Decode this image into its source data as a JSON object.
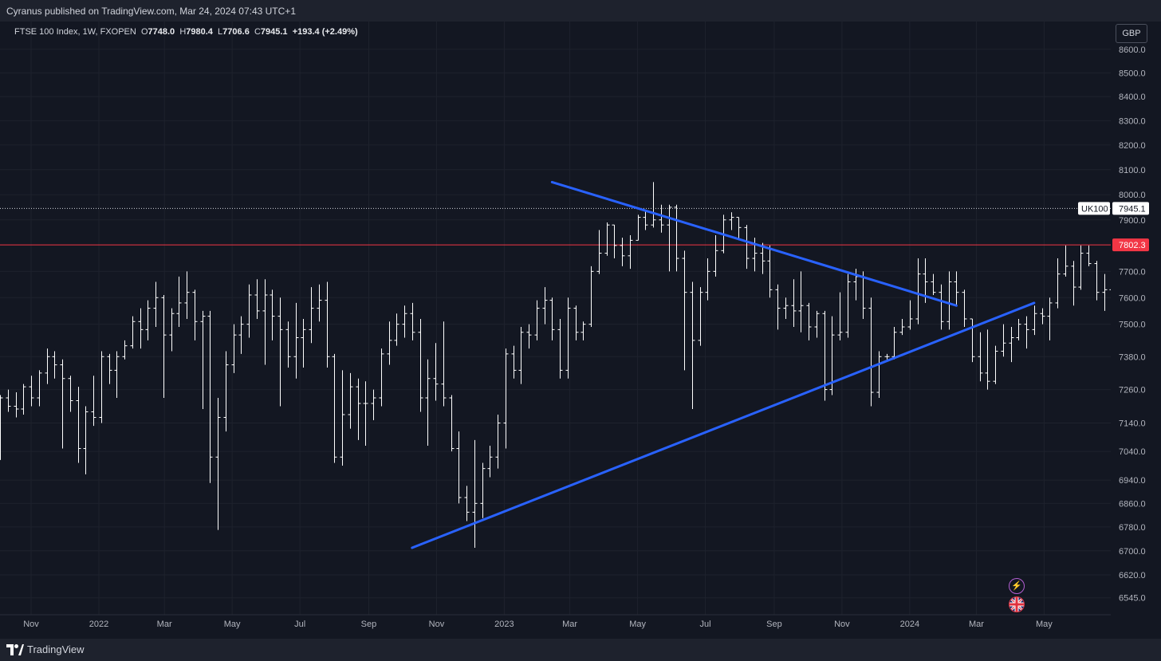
{
  "header": {
    "publisher": "Cyranus published on TradingView.com, Mar 24, 2024 07:43 UTC+1"
  },
  "legend": {
    "symbol": "FTSE 100 Index, 1W, FXOPEN",
    "o_label": "O",
    "o_value": "7748.0",
    "h_label": "H",
    "h_value": "7980.4",
    "l_label": "L",
    "l_value": "7706.6",
    "c_label": "C",
    "c_value": "7945.1",
    "change": "+193.4 (+2.49%)"
  },
  "currency_button": "GBP",
  "footer": {
    "brand": "TradingView"
  },
  "chart_data": {
    "type": "ohlc",
    "scale": "log",
    "ylim": [
      6490,
      8720
    ],
    "y_ticks": [
      "8600.0",
      "8500.0",
      "8400.0",
      "8300.0",
      "8200.0",
      "8100.0",
      "8000.0",
      "7900.0",
      "7802.3",
      "7700.0",
      "7600.0",
      "7500.0",
      "7380.0",
      "7260.0",
      "7140.0",
      "7040.0",
      "6940.0",
      "6860.0",
      "6780.0",
      "6700.0",
      "6620.0",
      "6545.0"
    ],
    "x_ticks": [
      "Nov",
      "2022",
      "Mar",
      "May",
      "Jul",
      "Sep",
      "Nov",
      "2023",
      "Mar",
      "May",
      "Jul",
      "Sep",
      "Nov",
      "2024",
      "Mar",
      "May"
    ],
    "x_tick_dates": [
      "2021-11-01",
      "2022-01-01",
      "2022-03-01",
      "2022-05-01",
      "2022-07-01",
      "2022-09-01",
      "2022-11-01",
      "2023-01-01",
      "2023-03-01",
      "2023-05-01",
      "2023-07-01",
      "2023-09-01",
      "2023-11-01",
      "2024-01-01",
      "2024-03-01",
      "2024-05-01"
    ],
    "xlim": [
      "2021-10-04",
      "2024-06-30"
    ],
    "first_bar_date": "2021-10-04",
    "bar_interval": "1W",
    "series": [
      {
        "name": "UK100",
        "bars": [
          [
            7140,
            7240,
            7010,
            7230
          ],
          [
            7230,
            7260,
            7180,
            7200
          ],
          [
            7200,
            7250,
            7160,
            7190
          ],
          [
            7190,
            7280,
            7170,
            7270
          ],
          [
            7270,
            7310,
            7200,
            7230
          ],
          [
            7230,
            7330,
            7200,
            7320
          ],
          [
            7320,
            7410,
            7280,
            7380
          ],
          [
            7380,
            7400,
            7300,
            7350
          ],
          [
            7350,
            7370,
            7050,
            7300
          ],
          [
            7300,
            7310,
            7180,
            7220
          ],
          [
            7220,
            7270,
            7000,
            7050
          ],
          [
            7050,
            7200,
            6960,
            7180
          ],
          [
            7180,
            7310,
            7130,
            7160
          ],
          [
            7160,
            7400,
            7140,
            7380
          ],
          [
            7380,
            7390,
            7280,
            7330
          ],
          [
            7330,
            7400,
            7230,
            7380
          ],
          [
            7380,
            7440,
            7370,
            7420
          ],
          [
            7420,
            7530,
            7410,
            7510
          ],
          [
            7510,
            7560,
            7410,
            7480
          ],
          [
            7480,
            7590,
            7440,
            7560
          ],
          [
            7560,
            7660,
            7490,
            7600
          ],
          [
            7600,
            7610,
            7230,
            7460
          ],
          [
            7460,
            7560,
            7400,
            7540
          ],
          [
            7540,
            7680,
            7490,
            7580
          ],
          [
            7580,
            7700,
            7520,
            7620
          ],
          [
            7620,
            7630,
            7440,
            7510
          ],
          [
            7510,
            7550,
            7190,
            7530
          ],
          [
            7530,
            7550,
            6930,
            7020
          ],
          [
            7020,
            7230,
            6770,
            7160
          ],
          [
            7160,
            7400,
            7110,
            7350
          ],
          [
            7350,
            7500,
            7320,
            7460
          ],
          [
            7460,
            7530,
            7390,
            7500
          ],
          [
            7500,
            7650,
            7450,
            7610
          ],
          [
            7610,
            7670,
            7520,
            7550
          ],
          [
            7550,
            7670,
            7350,
            7610
          ],
          [
            7610,
            7630,
            7440,
            7530
          ],
          [
            7530,
            7600,
            7200,
            7480
          ],
          [
            7480,
            7510,
            7340,
            7380
          ],
          [
            7380,
            7580,
            7300,
            7450
          ],
          [
            7450,
            7520,
            7340,
            7480
          ],
          [
            7480,
            7640,
            7430,
            7560
          ],
          [
            7560,
            7650,
            7510,
            7590
          ],
          [
            7590,
            7660,
            7340,
            7380
          ],
          [
            7380,
            7390,
            7000,
            7020
          ],
          [
            7020,
            7330,
            6990,
            7170
          ],
          [
            7170,
            7320,
            7120,
            7270
          ],
          [
            7270,
            7300,
            7080,
            7210
          ],
          [
            7210,
            7290,
            7060,
            7210
          ],
          [
            7210,
            7260,
            7150,
            7230
          ],
          [
            7230,
            7410,
            7200,
            7390
          ],
          [
            7390,
            7510,
            7350,
            7440
          ],
          [
            7440,
            7540,
            7420,
            7500
          ],
          [
            7500,
            7570,
            7450,
            7540
          ],
          [
            7540,
            7580,
            7440,
            7470
          ],
          [
            7470,
            7520,
            7180,
            7230
          ],
          [
            7230,
            7370,
            7060,
            7300
          ],
          [
            7300,
            7430,
            7220,
            7280
          ],
          [
            7280,
            7510,
            7200,
            7230
          ],
          [
            7230,
            7240,
            7040,
            7050
          ],
          [
            7050,
            7110,
            6860,
            6880
          ],
          [
            6880,
            6920,
            6800,
            6830
          ],
          [
            6830,
            7080,
            6710,
            6860
          ],
          [
            6860,
            7000,
            6810,
            6980
          ],
          [
            6980,
            7060,
            6950,
            7020
          ],
          [
            7020,
            7170,
            6980,
            7140
          ],
          [
            7140,
            7410,
            7050,
            7390
          ],
          [
            7390,
            7420,
            7300,
            7330
          ],
          [
            7330,
            7490,
            7280,
            7470
          ],
          [
            7470,
            7500,
            7410,
            7460
          ],
          [
            7460,
            7590,
            7440,
            7560
          ],
          [
            7560,
            7640,
            7500,
            7590
          ],
          [
            7590,
            7600,
            7440,
            7480
          ],
          [
            7480,
            7520,
            7300,
            7330
          ],
          [
            7330,
            7600,
            7300,
            7560
          ],
          [
            7560,
            7570,
            7440,
            7470
          ],
          [
            7470,
            7510,
            7440,
            7500
          ],
          [
            7500,
            7720,
            7490,
            7700
          ],
          [
            7700,
            7860,
            7690,
            7770
          ],
          [
            7770,
            7890,
            7760,
            7880
          ],
          [
            7880,
            7880,
            7750,
            7800
          ],
          [
            7800,
            7830,
            7720,
            7760
          ],
          [
            7760,
            7840,
            7710,
            7820
          ],
          [
            7820,
            7920,
            7820,
            7910
          ],
          [
            7910,
            7940,
            7860,
            7880
          ],
          [
            7880,
            8050,
            7870,
            7900
          ],
          [
            7900,
            7960,
            7850,
            7880
          ],
          [
            7880,
            7960,
            7700,
            7950
          ],
          [
            7950,
            7960,
            7700,
            7750
          ],
          [
            7750,
            7780,
            7330,
            7620
          ],
          [
            7620,
            7660,
            7190,
            7440
          ],
          [
            7440,
            7640,
            7420,
            7620
          ],
          [
            7620,
            7750,
            7590,
            7700
          ],
          [
            7700,
            7840,
            7680,
            7780
          ],
          [
            7780,
            7920,
            7770,
            7900
          ],
          [
            7900,
            7930,
            7860,
            7910
          ],
          [
            7910,
            7910,
            7820,
            7870
          ],
          [
            7870,
            7880,
            7710,
            7750
          ],
          [
            7750,
            7830,
            7700,
            7770
          ],
          [
            7770,
            7810,
            7690,
            7740
          ],
          [
            7740,
            7800,
            7600,
            7630
          ],
          [
            7630,
            7650,
            7480,
            7560
          ],
          [
            7560,
            7600,
            7520,
            7570
          ],
          [
            7570,
            7670,
            7490,
            7550
          ],
          [
            7550,
            7700,
            7470,
            7570
          ],
          [
            7570,
            7580,
            7440,
            7490
          ],
          [
            7490,
            7550,
            7450,
            7540
          ],
          [
            7540,
            7550,
            7220,
            7260
          ],
          [
            7260,
            7530,
            7240,
            7460
          ],
          [
            7460,
            7620,
            7440,
            7470
          ],
          [
            7470,
            7690,
            7450,
            7660
          ],
          [
            7660,
            7710,
            7590,
            7680
          ],
          [
            7680,
            7700,
            7520,
            7560
          ],
          [
            7560,
            7600,
            7200,
            7250
          ],
          [
            7250,
            7400,
            7230,
            7380
          ],
          [
            7380,
            7390,
            7370,
            7380
          ],
          [
            7380,
            7490,
            7370,
            7470
          ],
          [
            7470,
            7520,
            7460,
            7490
          ],
          [
            7490,
            7590,
            7480,
            7520
          ],
          [
            7520,
            7750,
            7500,
            7690
          ],
          [
            7690,
            7750,
            7580,
            7660
          ],
          [
            7660,
            7690,
            7610,
            7620
          ],
          [
            7620,
            7650,
            7480,
            7510
          ],
          [
            7510,
            7700,
            7480,
            7660
          ],
          [
            7660,
            7700,
            7570,
            7620
          ],
          [
            7620,
            7630,
            7490,
            7520
          ],
          [
            7520,
            7520,
            7360,
            7380
          ],
          [
            7380,
            7470,
            7290,
            7320
          ],
          [
            7320,
            7480,
            7260,
            7290
          ],
          [
            7290,
            7420,
            7280,
            7400
          ],
          [
            7400,
            7500,
            7380,
            7430
          ],
          [
            7430,
            7490,
            7360,
            7450
          ],
          [
            7450,
            7520,
            7440,
            7500
          ],
          [
            7500,
            7530,
            7410,
            7480
          ],
          [
            7480,
            7570,
            7460,
            7540
          ],
          [
            7540,
            7560,
            7500,
            7530
          ],
          [
            7530,
            7600,
            7440,
            7580
          ],
          [
            7580,
            7750,
            7560,
            7690
          ],
          [
            7690,
            7800,
            7680,
            7720
          ],
          [
            7720,
            7740,
            7570,
            7640
          ],
          [
            7640,
            7800,
            7630,
            7770
          ],
          [
            7770,
            7800,
            7720,
            7730
          ],
          [
            7730,
            7740,
            7590,
            7620
          ],
          [
            7620,
            7690,
            7550,
            7630
          ],
          [
            7630,
            7640,
            7410,
            7480
          ],
          [
            7480,
            7620,
            7470,
            7610
          ],
          [
            7610,
            7700,
            7580,
            7690
          ],
          [
            7690,
            7690,
            7590,
            7660
          ],
          [
            7660,
            7740,
            7640,
            7740
          ],
          [
            7740,
            7740,
            7470,
            7700
          ],
          [
            7700,
            7750,
            7660,
            7710
          ],
          [
            7710,
            7730,
            7610,
            7650
          ],
          [
            7650,
            7720,
            7610,
            7690
          ],
          [
            7690,
            7770,
            7610,
            7640
          ],
          [
            7640,
            7800,
            7620,
            7750
          ],
          [
            7748,
            7980.4,
            7706.6,
            7945.1
          ]
        ]
      }
    ],
    "horizontal_lines": [
      {
        "value": 7802.3,
        "label": "7802.3",
        "color": "#f23645",
        "style": "solid"
      },
      {
        "value": 7945.1,
        "label": "7945.1",
        "color": "#d1d4dc",
        "style": "dotted"
      }
    ],
    "trendlines": [
      {
        "from": [
          "2023-02-13",
          8050
        ],
        "to": [
          "2024-02-12",
          7570
        ],
        "color": "#2962ff"
      },
      {
        "from": [
          "2022-10-10",
          6710
        ],
        "to": [
          "2024-04-22",
          7580
        ],
        "color": "#2962ff"
      }
    ],
    "price_label": {
      "symbol": "UK100",
      "value": "7945.1"
    },
    "colors": {
      "background": "#131722",
      "bars": "#ffffff",
      "grid": "#1e222d",
      "text": "#b2b5be",
      "trendline": "#2962ff",
      "resistance": "#f23645"
    }
  }
}
